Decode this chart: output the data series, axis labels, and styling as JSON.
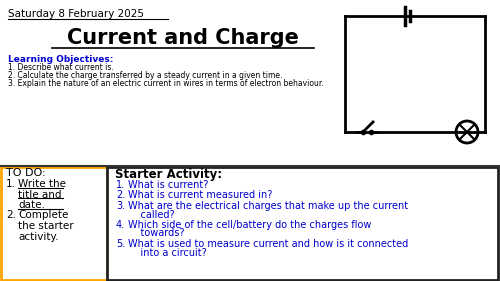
{
  "background_color": "#ffffff",
  "date_text": "Saturday 8 February 2025",
  "title_text": "Current and Charge",
  "learning_obj_header": "Learning Objectives:",
  "learning_objectives": [
    "1. Describe what current is.",
    "2. Calculate the charge transferred by a steady current in a given time.",
    "3. Explain the nature of an electric current in wires in terms of electron behaviour."
  ],
  "todo_header": "TO DO:",
  "starter_header": "Starter Activity:",
  "starter_questions": [
    "What is current?",
    "What is current measured in?",
    "What are the electrical charges that make up the current called?",
    "Which side of the cell/battery do the charges flow towards?",
    "What is used to measure current and how is it connected into a circuit?"
  ],
  "blue_color": "#0000CD",
  "black": "#000000",
  "orange_border": "#FFA500"
}
